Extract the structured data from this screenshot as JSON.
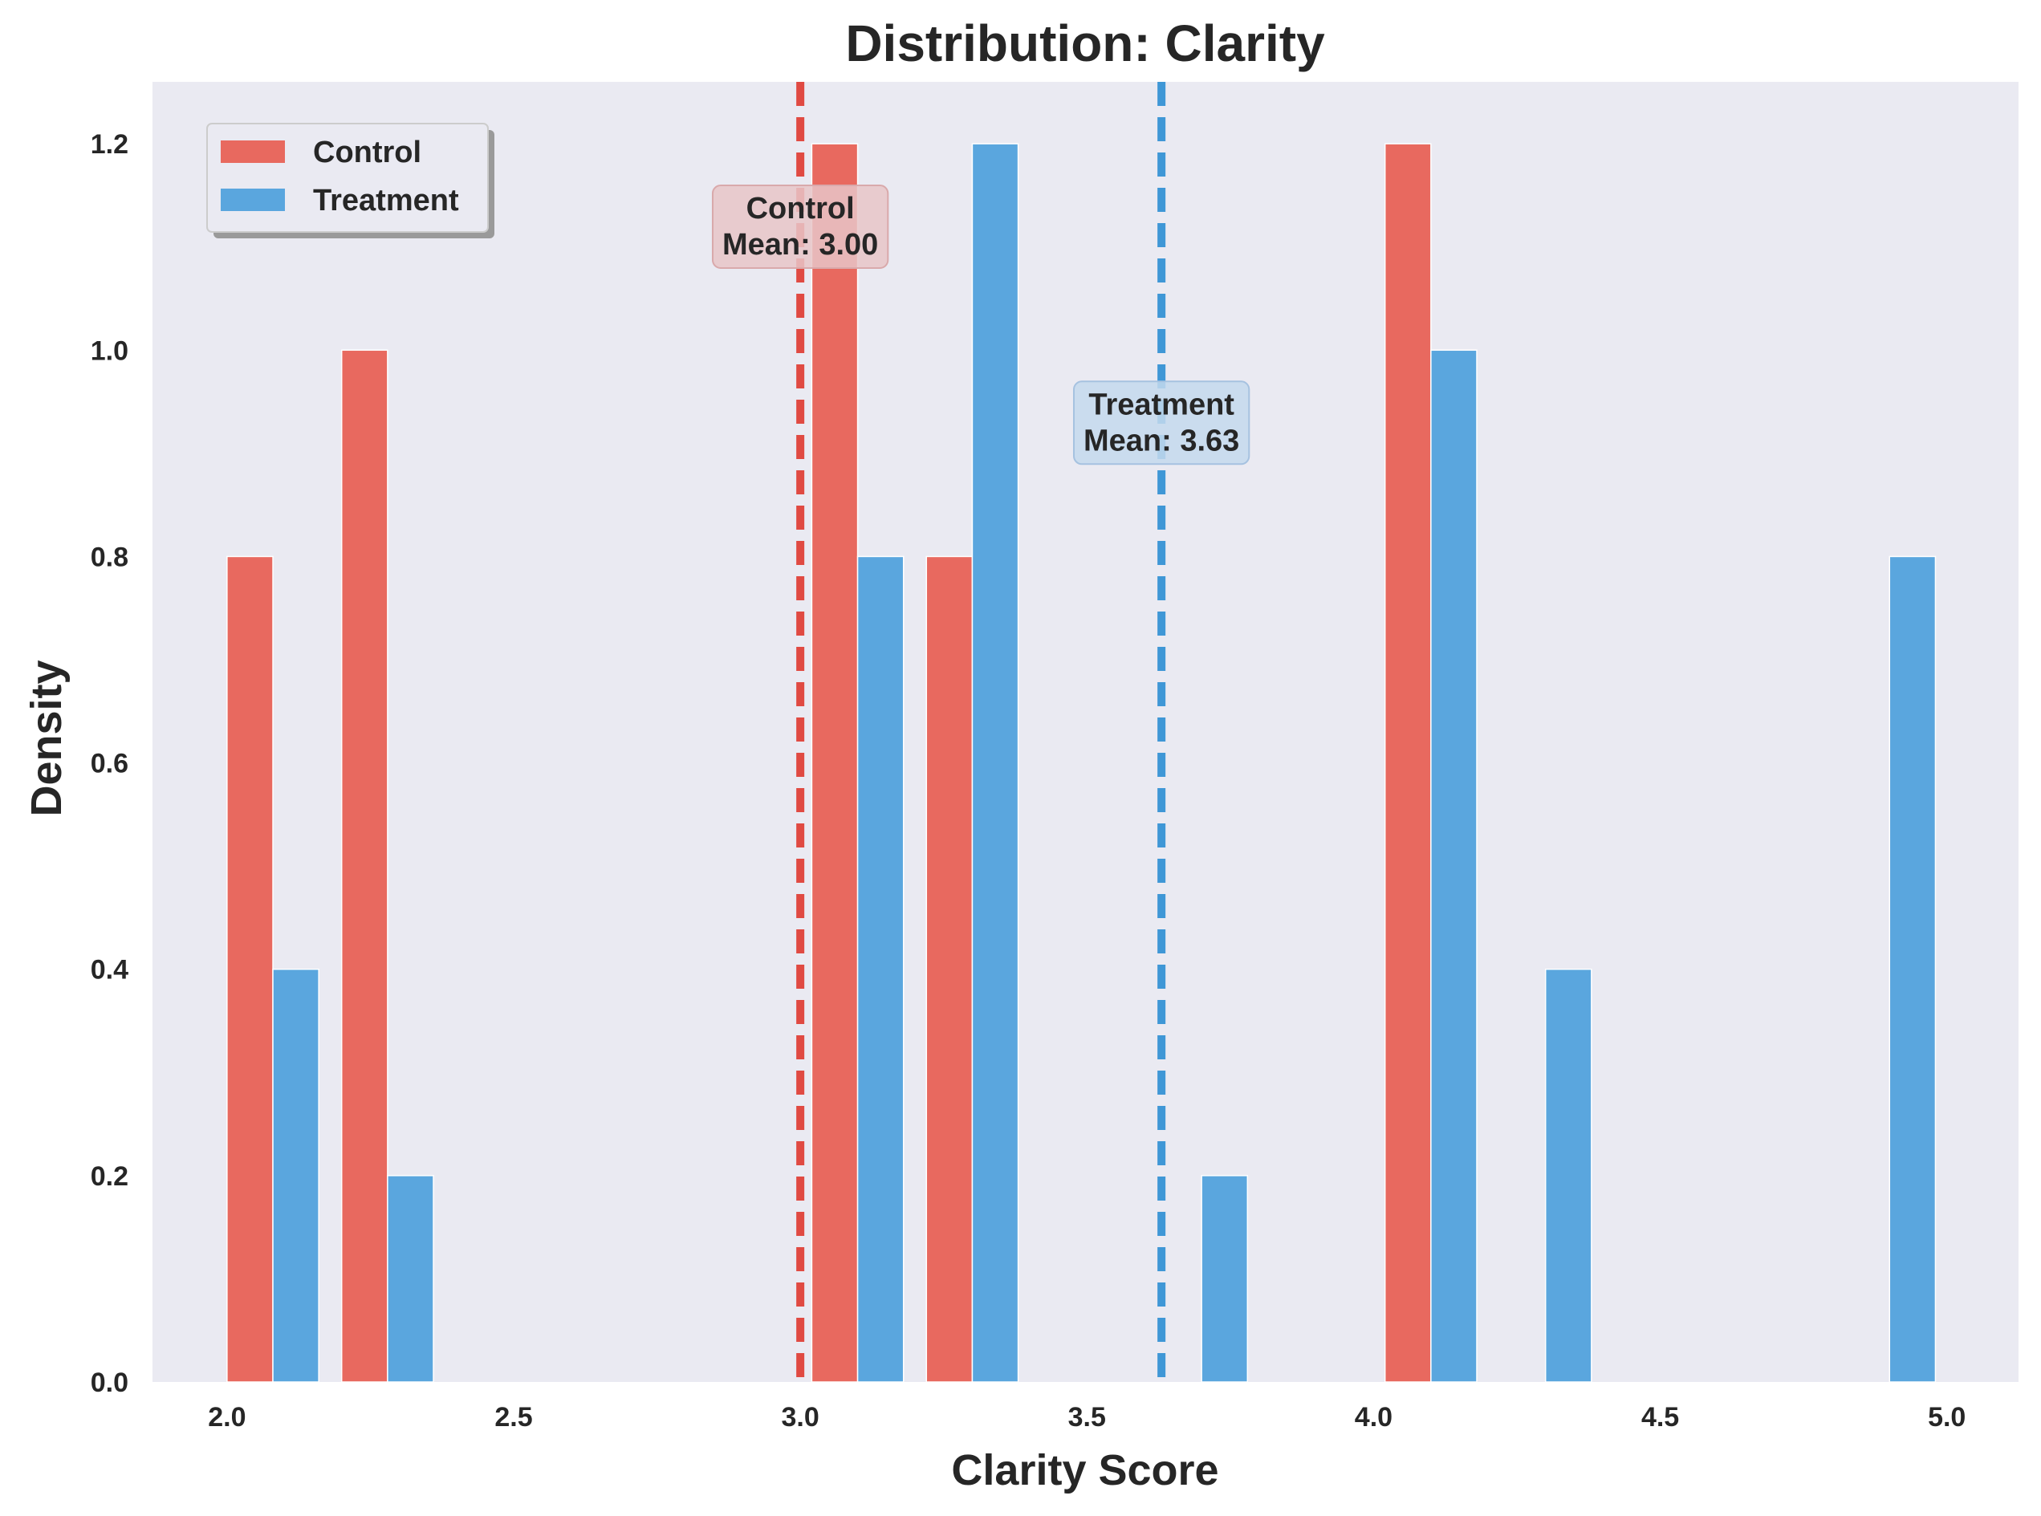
{
  "chart_data": {
    "type": "bar",
    "title": "Distribution: Clarity",
    "xlabel": "Clarity Score",
    "ylabel": "Density",
    "xlim": [
      1.87,
      5.125
    ],
    "ylim": [
      0,
      1.26
    ],
    "xticks": [
      "2.0",
      "2.5",
      "3.0",
      "3.5",
      "4.0",
      "4.5",
      "5.0"
    ],
    "yticks": [
      "0.0",
      "0.2",
      "0.4",
      "0.6",
      "0.8",
      "1.0",
      "1.2"
    ],
    "grid": false,
    "legend_position": "top-left",
    "series": [
      {
        "name": "Control",
        "color": "#e8695f",
        "bars": [
          {
            "x": 2.0,
            "width": 0.08,
            "value": 0.8
          },
          {
            "x": 2.2,
            "width": 0.08,
            "value": 1.0
          },
          {
            "x": 3.02,
            "width": 0.08,
            "value": 1.2
          },
          {
            "x": 3.22,
            "width": 0.08,
            "value": 0.8
          },
          {
            "x": 4.02,
            "width": 0.08,
            "value": 1.2
          }
        ]
      },
      {
        "name": "Treatment",
        "color": "#5aa6de",
        "bars": [
          {
            "x": 2.08,
            "width": 0.08,
            "value": 0.4
          },
          {
            "x": 2.28,
            "width": 0.08,
            "value": 0.2
          },
          {
            "x": 3.1,
            "width": 0.08,
            "value": 0.8
          },
          {
            "x": 3.3,
            "width": 0.08,
            "value": 1.2
          },
          {
            "x": 3.7,
            "width": 0.08,
            "value": 0.2
          },
          {
            "x": 4.1,
            "width": 0.08,
            "value": 1.0
          },
          {
            "x": 4.3,
            "width": 0.08,
            "value": 0.4
          },
          {
            "x": 4.9,
            "width": 0.08,
            "value": 0.8
          }
        ]
      }
    ],
    "mean_lines": [
      {
        "series": "Control",
        "x": 3.0,
        "color": "#e04a42",
        "label_line1": "Control",
        "label_line2": "Mean: 3.00",
        "label_y": 1.12,
        "box_fill": "#e8c6c8",
        "box_stroke": "#d9a9ab"
      },
      {
        "series": "Treatment",
        "x": 3.63,
        "color": "#3f97d6",
        "label_line1": "Treatment",
        "label_line2": "Mean: 3.63",
        "label_y": 0.93,
        "box_fill": "#c4d9ed",
        "box_stroke": "#a6c2e0"
      }
    ],
    "plot_background": "#eaeaf2"
  }
}
